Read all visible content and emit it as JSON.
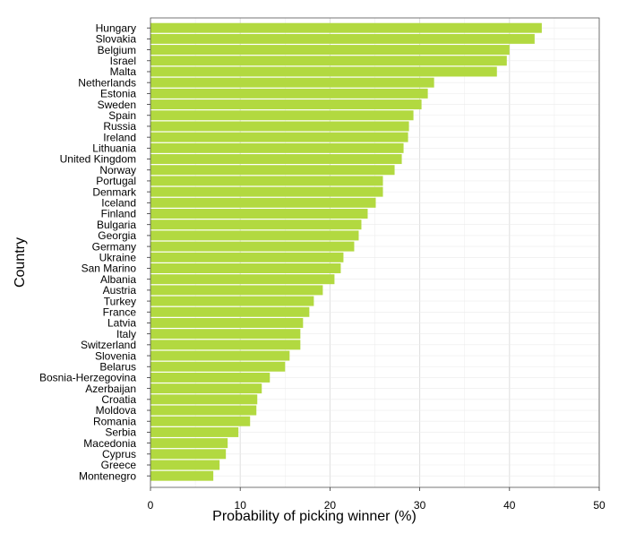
{
  "chart_data": {
    "type": "bar",
    "orientation": "horizontal",
    "title": "",
    "xlabel": "Probability of picking winner (%)",
    "ylabel": "Country",
    "xlim": [
      0,
      50
    ],
    "x_ticks": [
      "0",
      "10",
      "20",
      "30",
      "40",
      "50"
    ],
    "grid": true,
    "bar_color": "#b2d940",
    "categories": [
      "Hungary",
      "Slovakia",
      "Belgium",
      "Israel",
      "Malta",
      "Netherlands",
      "Estonia",
      "Sweden",
      "Spain",
      "Russia",
      "Ireland",
      "Lithuania",
      "United Kingdom",
      "Norway",
      "Portugal",
      "Denmark",
      "Iceland",
      "Finland",
      "Bulgaria",
      "Georgia",
      "Germany",
      "Ukraine",
      "San Marino",
      "Albania",
      "Austria",
      "Turkey",
      "France",
      "Latvia",
      "Italy",
      "Switzerland",
      "Slovenia",
      "Belarus",
      "Bosnia-Herzegovina",
      "Azerbaijan",
      "Croatia",
      "Moldova",
      "Romania",
      "Serbia",
      "Macedonia",
      "Cyprus",
      "Greece",
      "Montenegro"
    ],
    "values": [
      43.6,
      42.8,
      40.0,
      39.7,
      38.6,
      31.6,
      30.9,
      30.2,
      29.3,
      28.8,
      28.7,
      28.2,
      28.0,
      27.2,
      25.9,
      25.9,
      25.1,
      24.2,
      23.5,
      23.2,
      22.7,
      21.5,
      21.2,
      20.5,
      19.2,
      18.2,
      17.7,
      17.0,
      16.7,
      16.7,
      15.5,
      15.0,
      13.3,
      12.4,
      11.9,
      11.8,
      11.1,
      9.8,
      8.6,
      8.4,
      7.7,
      7.0
    ]
  }
}
